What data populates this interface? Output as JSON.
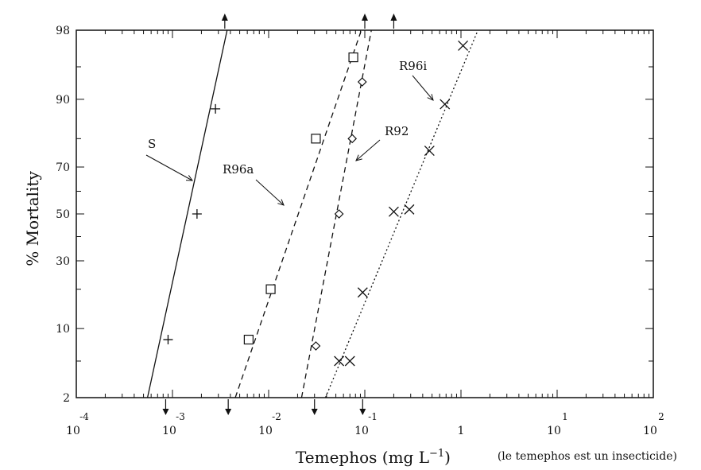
{
  "chart_data": {
    "type": "scatter",
    "subtype": "log-probit dose-mortality lines",
    "title": "",
    "xlabel": "Temephos (mg L",
    "xlabel_sup": "−1",
    "xlabel_close": ")",
    "ylabel": "% Mortality",
    "note": "(le temephos est un insecticide)",
    "x_scale": "log10",
    "y_scale": "probit",
    "xlim": [
      0.0001,
      100
    ],
    "ylim": [
      2,
      98
    ],
    "x_ticks": [
      {
        "base": "10",
        "exp": "-4",
        "value": 0.0001
      },
      {
        "base": "10",
        "exp": "-3",
        "value": 0.001
      },
      {
        "base": "10",
        "exp": "-2",
        "value": 0.01
      },
      {
        "base": "10",
        "exp": "-1",
        "value": 0.1
      },
      {
        "base": "1",
        "exp": "",
        "value": 1
      },
      {
        "base": "10",
        "exp": "1",
        "value": 10
      },
      {
        "base": "10",
        "exp": "2",
        "value": 100
      }
    ],
    "y_ticks": [
      "2",
      "10",
      "30",
      "50",
      "70",
      "90",
      "98"
    ],
    "y_tick_values": [
      2,
      10,
      30,
      50,
      70,
      90,
      98
    ],
    "grid": false,
    "series": [
      {
        "name": "S",
        "marker": "plus",
        "line_style": "solid",
        "points": [
          [
            0.0009,
            8
          ],
          [
            0.0018,
            50
          ],
          [
            0.0028,
            88
          ]
        ],
        "line": [
          [
            0.00055,
            2
          ],
          [
            0.0037,
            98
          ]
        ]
      },
      {
        "name": "R96a",
        "marker": "square",
        "line_style": "dashed",
        "points": [
          [
            0.0062,
            8
          ],
          [
            0.0105,
            20
          ],
          [
            0.031,
            80
          ],
          [
            0.076,
            96
          ]
        ],
        "line": [
          [
            0.0045,
            2
          ],
          [
            0.092,
            98
          ]
        ]
      },
      {
        "name": "R92",
        "marker": "diamond",
        "line_style": "dashed",
        "points": [
          [
            0.031,
            7
          ],
          [
            0.054,
            50
          ],
          [
            0.074,
            80
          ],
          [
            0.094,
            93
          ]
        ],
        "line": [
          [
            0.022,
            2
          ],
          [
            0.117,
            98
          ]
        ]
      },
      {
        "name": "R96i",
        "marker": "x",
        "line_style": "dotted",
        "points": [
          [
            0.054,
            5
          ],
          [
            0.07,
            5
          ],
          [
            0.095,
            19
          ],
          [
            0.2,
            51
          ],
          [
            0.29,
            52
          ],
          [
            0.47,
            76
          ],
          [
            0.68,
            89
          ],
          [
            1.05,
            97
          ]
        ],
        "line": [
          [
            0.039,
            2
          ],
          [
            1.5,
            98
          ]
        ]
      }
    ],
    "annotations": [
      {
        "text": "S",
        "series": "S"
      },
      {
        "text": "R96a",
        "series": "R96a"
      },
      {
        "text": "R92",
        "series": "R92"
      },
      {
        "text": "R96i",
        "series": "R96i"
      }
    ],
    "extra_markers": {
      "down_arrows_x": [
        0.00085,
        0.0038,
        0.03,
        0.095
      ],
      "up_arrows_x": [
        0.0035,
        0.1,
        0.2
      ]
    }
  }
}
